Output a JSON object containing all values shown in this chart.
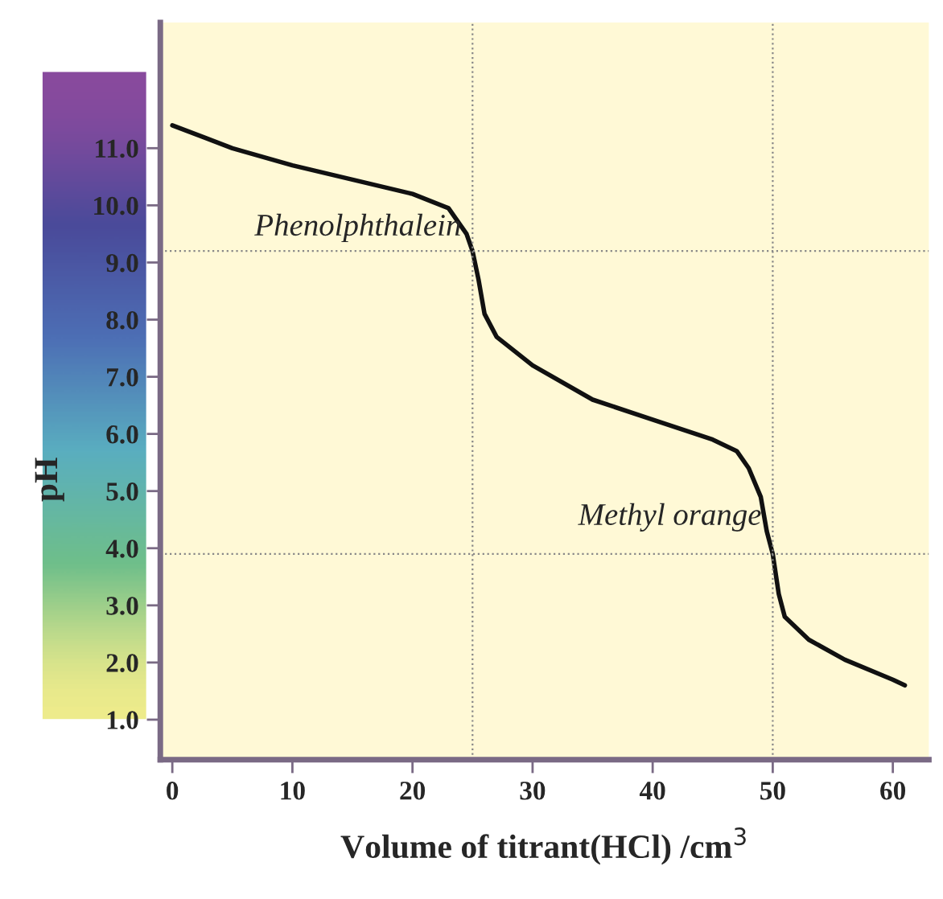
{
  "chart_data": {
    "type": "line",
    "xlabel": "Volume of titrant(HCl) /cm$^{3}$",
    "ylabel": "pH",
    "series": [
      {
        "color": "#111111",
        "x": [
          0,
          5,
          10,
          15,
          20,
          23,
          24.5,
          25,
          25.5,
          26,
          27,
          30,
          35,
          40,
          45,
          47,
          48,
          49,
          49.5,
          50,
          50.5,
          51,
          53,
          56,
          60,
          61
        ],
        "values": [
          11.4,
          11.0,
          10.7,
          10.45,
          10.2,
          9.95,
          9.5,
          9.2,
          8.7,
          8.1,
          7.7,
          7.2,
          6.6,
          6.25,
          5.9,
          5.7,
          5.4,
          4.9,
          4.3,
          3.9,
          3.2,
          2.8,
          2.4,
          2.05,
          1.7,
          1.6
        ]
      }
    ],
    "xlim": [
      -1,
      63
    ],
    "ylim": [
      0.3,
      13.2
    ],
    "xticks": [
      0,
      10,
      20,
      30,
      40,
      50,
      60
    ],
    "yticks": [
      {
        "value": 1,
        "label": "1.0"
      },
      {
        "value": 2,
        "label": "2.0"
      },
      {
        "value": 3,
        "label": "3.0"
      },
      {
        "value": 4,
        "label": "4.0"
      },
      {
        "value": 5,
        "label": "5.0"
      },
      {
        "value": 6,
        "label": "6.0"
      },
      {
        "value": 7,
        "label": "7.0"
      },
      {
        "value": 8,
        "label": "8.0"
      },
      {
        "value": 9,
        "label": "9.0"
      },
      {
        "value": 10,
        "label": "10.0"
      },
      {
        "value": 11,
        "label": "11.0"
      }
    ],
    "ref_lines": [
      {
        "axis": "y",
        "value": 9.2,
        "color": "#888888",
        "line_style": "dotted"
      },
      {
        "axis": "y",
        "value": 3.9,
        "color": "#888888",
        "line_style": "dotted"
      },
      {
        "axis": "x",
        "value": 25,
        "color": "#888888",
        "line_style": "dotted"
      },
      {
        "axis": "x",
        "value": 50,
        "color": "#888888",
        "line_style": "dotted"
      }
    ],
    "annotations": [
      {
        "text": "Phenolphthalein",
        "x": 25,
        "y": 9.2
      },
      {
        "text": "Methyl orange",
        "x": 50,
        "y": 3.9
      }
    ],
    "grid": false,
    "legend": false,
    "marker": "none",
    "line_style": "solid"
  }
}
